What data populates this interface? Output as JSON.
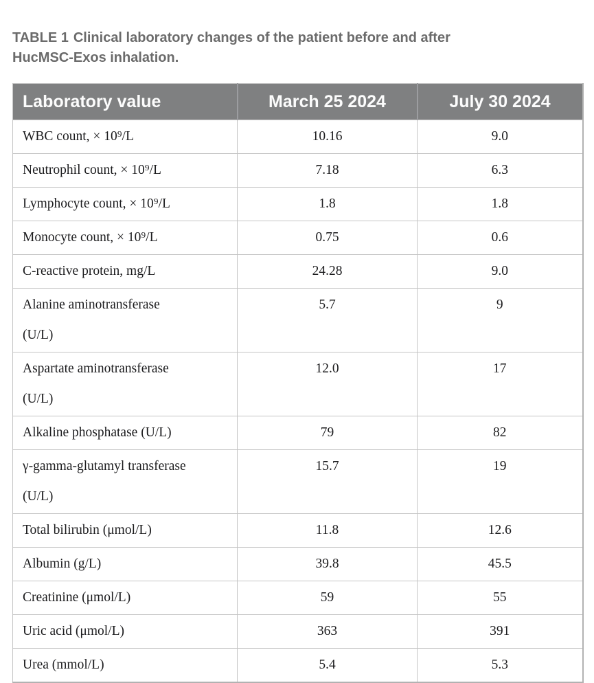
{
  "caption": {
    "label": "TABLE 1",
    "text": "Clinical laboratory changes of the patient before and after\nHucMSC-Exos inhalation."
  },
  "table": {
    "headers": [
      "Laboratory value",
      "March 25 2024",
      "July 30 2024"
    ],
    "rows": [
      {
        "label": "WBC count, × 10⁹/L",
        "before": "10.16",
        "after": "9.0"
      },
      {
        "label": "Neutrophil count, × 10⁹/L",
        "before": "7.18",
        "after": "6.3"
      },
      {
        "label": "Lymphocyte count, × 10⁹/L",
        "before": "1.8",
        "after": "1.8"
      },
      {
        "label": "Monocyte count, × 10⁹/L",
        "before": "0.75",
        "after": "0.6"
      },
      {
        "label": "C-reactive protein, mg/L",
        "before": "24.28",
        "after": "9.0"
      },
      {
        "label": "Alanine aminotransferase\n(U/L)",
        "before": "5.7",
        "after": "9"
      },
      {
        "label": "Aspartate aminotransferase\n(U/L)",
        "before": "12.0",
        "after": "17"
      },
      {
        "label": "Alkaline phosphatase (U/L)",
        "before": "79",
        "after": "82"
      },
      {
        "label": "γ-gamma-glutamyl transferase\n(U/L)",
        "before": "15.7",
        "after": "19"
      },
      {
        "label": "Total bilirubin (μmol/L)",
        "before": "11.8",
        "after": "12.6"
      },
      {
        "label": "Albumin (g/L)",
        "before": "39.8",
        "after": "45.5"
      },
      {
        "label": "Creatinine (μmol/L)",
        "before": "59",
        "after": "55"
      },
      {
        "label": "Uric acid (μmol/L)",
        "before": "363",
        "after": "391"
      },
      {
        "label": "Urea (mmol/L)",
        "before": "5.4",
        "after": "5.3"
      }
    ]
  },
  "colors": {
    "caption_text": "#6b6b6b",
    "header_bg": "#7f8081",
    "header_text": "#fcfcfc",
    "header_divider": "#9c9da0",
    "body_text": "#1c1c1e",
    "border": "#c4c4c4",
    "outer_border": "#b2b2b2",
    "page_bg": "#ffffff"
  }
}
